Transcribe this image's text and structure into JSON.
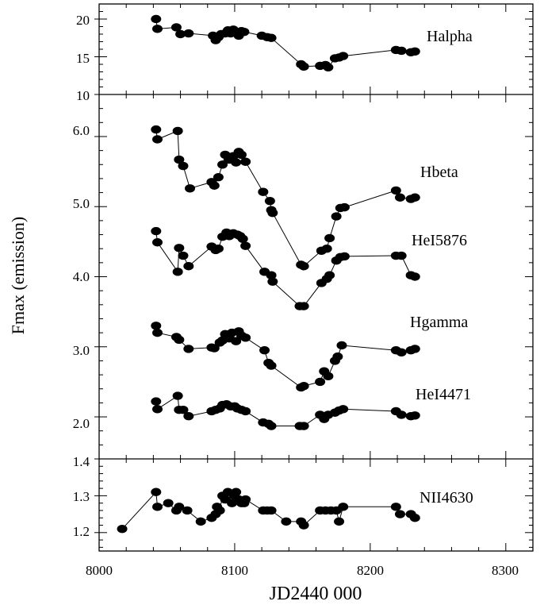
{
  "chart_data": {
    "type": "scatter",
    "xlabel": "JD2440 000",
    "ylabel": "Fmax (emission)",
    "x_ticks": [
      "8000",
      "8100",
      "8200",
      "8300"
    ],
    "xlim": [
      8000,
      8320
    ],
    "panels": [
      {
        "id": "top",
        "ylim": [
          10,
          22
        ],
        "y_ticks": [
          "10",
          "15",
          "20"
        ],
        "series": [
          {
            "name": "Halpha",
            "points": [
              [
                8042,
                20.0
              ],
              [
                8043,
                18.7
              ],
              [
                8057,
                18.9
              ],
              [
                8060,
                18.0
              ],
              [
                8066,
                18.1
              ],
              [
                8084,
                17.8
              ],
              [
                8086,
                17.2
              ],
              [
                8088,
                17.6
              ],
              [
                8090,
                18.0
              ],
              [
                8093,
                18.1
              ],
              [
                8095,
                18.5
              ],
              [
                8097,
                18.1
              ],
              [
                8099,
                18.6
              ],
              [
                8101,
                18.3
              ],
              [
                8103,
                17.8
              ],
              [
                8105,
                18.4
              ],
              [
                8107,
                18.3
              ],
              [
                8120,
                17.8
              ],
              [
                8124,
                17.6
              ],
              [
                8127,
                17.5
              ],
              [
                8149,
                14.0
              ],
              [
                8151,
                13.7
              ],
              [
                8163,
                13.8
              ],
              [
                8167,
                13.9
              ],
              [
                8169,
                13.6
              ],
              [
                8174,
                14.8
              ],
              [
                8177,
                14.9
              ],
              [
                8180,
                15.1
              ],
              [
                8219,
                15.9
              ],
              [
                8223,
                15.8
              ],
              [
                8230,
                15.6
              ],
              [
                8233,
                15.7
              ]
            ]
          }
        ]
      },
      {
        "id": "middle",
        "ylim": [
          1.4,
          6.6
        ],
        "y_ticks": [
          "2.0",
          "3.0",
          "4.0",
          "5.0",
          "6.0"
        ],
        "series": [
          {
            "name": "Hbeta",
            "points": [
              [
                8042,
                6.1
              ],
              [
                8043,
                5.96
              ],
              [
                8058,
                6.08
              ],
              [
                8059,
                5.67
              ],
              [
                8062,
                5.58
              ],
              [
                8067,
                5.26
              ],
              [
                8083,
                5.35
              ],
              [
                8085,
                5.3
              ],
              [
                8088,
                5.42
              ],
              [
                8091,
                5.6
              ],
              [
                8093,
                5.74
              ],
              [
                8096,
                5.67
              ],
              [
                8099,
                5.72
              ],
              [
                8101,
                5.63
              ],
              [
                8103,
                5.78
              ],
              [
                8105,
                5.74
              ],
              [
                8108,
                5.64
              ],
              [
                8121,
                5.21
              ],
              [
                8126,
                5.08
              ],
              [
                8127,
                4.95
              ],
              [
                8128,
                4.91
              ],
              [
                8149,
                4.17
              ],
              [
                8151,
                4.15
              ],
              [
                8164,
                4.37
              ],
              [
                8168,
                4.4
              ],
              [
                8170,
                4.55
              ],
              [
                8175,
                4.86
              ],
              [
                8178,
                4.98
              ],
              [
                8181,
                4.99
              ],
              [
                8219,
                5.23
              ],
              [
                8222,
                5.13
              ],
              [
                8230,
                5.11
              ],
              [
                8233,
                5.13
              ]
            ]
          },
          {
            "name": "HeI5876",
            "points": [
              [
                8042,
                4.65
              ],
              [
                8043,
                4.49
              ],
              [
                8058,
                4.07
              ],
              [
                8059,
                4.41
              ],
              [
                8062,
                4.3
              ],
              [
                8066,
                4.15
              ],
              [
                8083,
                4.43
              ],
              [
                8086,
                4.38
              ],
              [
                8088,
                4.4
              ],
              [
                8091,
                4.57
              ],
              [
                8094,
                4.63
              ],
              [
                8096,
                4.58
              ],
              [
                8099,
                4.62
              ],
              [
                8102,
                4.6
              ],
              [
                8104,
                4.58
              ],
              [
                8106,
                4.54
              ],
              [
                8108,
                4.44
              ],
              [
                8122,
                4.07
              ],
              [
                8127,
                4.02
              ],
              [
                8128,
                3.93
              ],
              [
                8148,
                3.58
              ],
              [
                8151,
                3.58
              ],
              [
                8164,
                3.91
              ],
              [
                8168,
                3.97
              ],
              [
                8170,
                4.02
              ],
              [
                8175,
                4.23
              ],
              [
                8178,
                4.28
              ],
              [
                8181,
                4.29
              ],
              [
                8219,
                4.3
              ],
              [
                8223,
                4.3
              ],
              [
                8230,
                4.02
              ],
              [
                8233,
                4.0
              ]
            ]
          },
          {
            "name": "Hgamma",
            "points": [
              [
                8042,
                3.3
              ],
              [
                8043,
                3.2
              ],
              [
                8057,
                3.14
              ],
              [
                8059,
                3.1
              ],
              [
                8066,
                2.97
              ],
              [
                8083,
                2.99
              ],
              [
                8085,
                2.98
              ],
              [
                8089,
                3.06
              ],
              [
                8091,
                3.09
              ],
              [
                8093,
                3.18
              ],
              [
                8096,
                3.12
              ],
              [
                8098,
                3.2
              ],
              [
                8101,
                3.08
              ],
              [
                8103,
                3.22
              ],
              [
                8105,
                3.16
              ],
              [
                8108,
                3.13
              ],
              [
                8122,
                2.95
              ],
              [
                8125,
                2.77
              ],
              [
                8127,
                2.73
              ],
              [
                8149,
                2.42
              ],
              [
                8151,
                2.44
              ],
              [
                8163,
                2.5
              ],
              [
                8166,
                2.65
              ],
              [
                8169,
                2.58
              ],
              [
                8174,
                2.8
              ],
              [
                8176,
                2.86
              ],
              [
                8179,
                3.02
              ],
              [
                8219,
                2.95
              ],
              [
                8223,
                2.92
              ],
              [
                8230,
                2.95
              ],
              [
                8233,
                2.97
              ]
            ]
          },
          {
            "name": "HeI4471",
            "points": [
              [
                8042,
                2.22
              ],
              [
                8043,
                2.11
              ],
              [
                8058,
                2.3
              ],
              [
                8059,
                2.1
              ],
              [
                8062,
                2.1
              ],
              [
                8066,
                2.01
              ],
              [
                8083,
                2.08
              ],
              [
                8086,
                2.1
              ],
              [
                8089,
                2.12
              ],
              [
                8091,
                2.17
              ],
              [
                8094,
                2.18
              ],
              [
                8097,
                2.15
              ],
              [
                8100,
                2.15
              ],
              [
                8102,
                2.12
              ],
              [
                8105,
                2.1
              ],
              [
                8108,
                2.08
              ],
              [
                8121,
                1.92
              ],
              [
                8125,
                1.9
              ],
              [
                8127,
                1.87
              ],
              [
                8148,
                1.87
              ],
              [
                8151,
                1.87
              ],
              [
                8163,
                2.03
              ],
              [
                8166,
                1.97
              ],
              [
                8169,
                2.03
              ],
              [
                8174,
                2.06
              ],
              [
                8177,
                2.09
              ],
              [
                8180,
                2.11
              ],
              [
                8219,
                2.08
              ],
              [
                8223,
                2.03
              ],
              [
                8230,
                2.01
              ],
              [
                8233,
                2.02
              ]
            ]
          }
        ]
      },
      {
        "id": "bottom",
        "ylim": [
          1.15,
          1.4
        ],
        "y_ticks": [
          "1.2",
          "1.3",
          "1.4"
        ],
        "series": [
          {
            "name": "NII4630",
            "points": [
              [
                8017,
                1.21
              ],
              [
                8042,
                1.31
              ],
              [
                8043,
                1.27
              ],
              [
                8051,
                1.28
              ],
              [
                8057,
                1.26
              ],
              [
                8059,
                1.27
              ],
              [
                8065,
                1.26
              ],
              [
                8075,
                1.23
              ],
              [
                8083,
                1.24
              ],
              [
                8086,
                1.25
              ],
              [
                8089,
                1.26
              ],
              [
                8087,
                1.27
              ],
              [
                8091,
                1.3
              ],
              [
                8093,
                1.29
              ],
              [
                8095,
                1.31
              ],
              [
                8098,
                1.28
              ],
              [
                8100,
                1.3
              ],
              [
                8101,
                1.31
              ],
              [
                8103,
                1.29
              ],
              [
                8105,
                1.28
              ],
              [
                8107,
                1.28
              ],
              [
                8108,
                1.29
              ],
              [
                8121,
                1.26
              ],
              [
                8124,
                1.26
              ],
              [
                8127,
                1.26
              ],
              [
                8138,
                1.23
              ],
              [
                8149,
                1.23
              ],
              [
                8151,
                1.22
              ],
              [
                8163,
                1.26
              ],
              [
                8167,
                1.26
              ],
              [
                8171,
                1.26
              ],
              [
                8175,
                1.26
              ],
              [
                8177,
                1.23
              ],
              [
                8180,
                1.27
              ],
              [
                8219,
                1.27
              ],
              [
                8222,
                1.25
              ],
              [
                8230,
                1.25
              ],
              [
                8233,
                1.24
              ]
            ]
          }
        ]
      }
    ]
  }
}
